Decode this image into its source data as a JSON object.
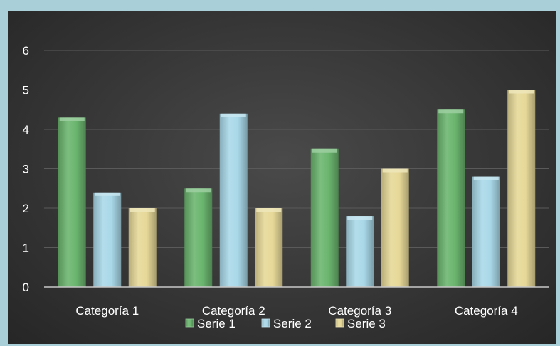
{
  "chart_data": {
    "type": "bar",
    "categories": [
      "Categoría 1",
      "Categoría 2",
      "Categoría 3",
      "Categoría 4"
    ],
    "series": [
      {
        "name": "Serie 1",
        "values": [
          4.3,
          2.5,
          3.5,
          4.5
        ],
        "color": "#6ab56e"
      },
      {
        "name": "Serie 2",
        "values": [
          2.4,
          4.4,
          1.8,
          2.8
        ],
        "color": "#a9d8e8"
      },
      {
        "name": "Serie 3",
        "values": [
          2,
          2,
          3,
          5
        ],
        "color": "#e6d897"
      }
    ],
    "yticks": [
      0,
      1,
      2,
      3,
      4,
      5,
      6
    ],
    "ylim": [
      0,
      6
    ],
    "grid": true,
    "legend": "bottom",
    "background": "#333333",
    "page_background": "#a9cfd8"
  }
}
